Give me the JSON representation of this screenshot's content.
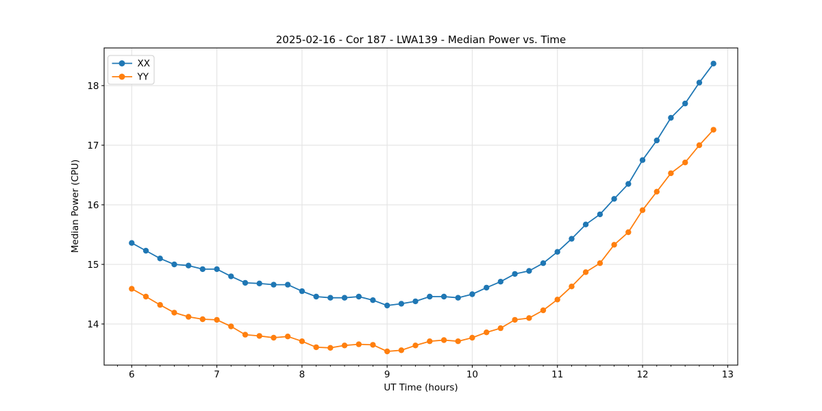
{
  "chart_data": {
    "type": "line",
    "title": "2025-02-16 - Cor 187 - LWA139 - Median Power vs. Time",
    "xlabel": "UT Time (hours)",
    "ylabel": "Median Power (CPU)",
    "x": [
      6.0,
      6.167,
      6.333,
      6.5,
      6.667,
      6.833,
      7.0,
      7.167,
      7.333,
      7.5,
      7.667,
      7.833,
      8.0,
      8.167,
      8.333,
      8.5,
      8.667,
      8.833,
      9.0,
      9.167,
      9.333,
      9.5,
      9.667,
      9.833,
      10.0,
      10.167,
      10.333,
      10.5,
      10.667,
      10.833,
      11.0,
      11.167,
      11.333,
      11.5,
      11.667,
      11.833,
      12.0,
      12.167,
      12.333,
      12.5,
      12.667,
      12.833
    ],
    "series": [
      {
        "name": "XX",
        "color": "#1f77b4",
        "values": [
          15.36,
          15.23,
          15.1,
          15.0,
          14.98,
          14.92,
          14.92,
          14.8,
          14.69,
          14.68,
          14.66,
          14.66,
          14.55,
          14.46,
          14.44,
          14.44,
          14.46,
          14.4,
          14.31,
          14.34,
          14.38,
          14.46,
          14.46,
          14.44,
          14.5,
          14.61,
          14.71,
          14.84,
          14.89,
          15.02,
          15.21,
          15.43,
          15.67,
          15.84,
          16.1,
          16.35,
          16.75,
          17.08,
          17.46,
          17.7,
          18.05,
          18.37
        ]
      },
      {
        "name": "YY",
        "color": "#ff7f0e",
        "values": [
          14.59,
          14.46,
          14.32,
          14.19,
          14.12,
          14.08,
          14.07,
          13.96,
          13.82,
          13.8,
          13.77,
          13.79,
          13.71,
          13.61,
          13.6,
          13.64,
          13.66,
          13.65,
          13.54,
          13.56,
          13.64,
          13.71,
          13.73,
          13.71,
          13.77,
          13.86,
          13.93,
          14.07,
          14.1,
          14.23,
          14.41,
          14.63,
          14.87,
          15.02,
          15.33,
          15.54,
          15.91,
          16.22,
          16.53,
          16.71,
          17.0,
          17.26
        ]
      }
    ],
    "xlim": [
      5.676,
      13.118
    ],
    "ylim": [
      13.31,
      18.632
    ],
    "xticks": [
      6,
      7,
      8,
      9,
      10,
      11,
      12,
      13
    ],
    "yticks": [
      14,
      15,
      16,
      17,
      18
    ],
    "x_minor_step": 0.166667,
    "grid": true,
    "legend_position": "upper left",
    "marker": "circle"
  },
  "colors": {
    "grid": "#e5e5e5",
    "spine": "#000000",
    "tick_text": "#000000",
    "legend_border": "#cccccc",
    "background": "#ffffff"
  }
}
